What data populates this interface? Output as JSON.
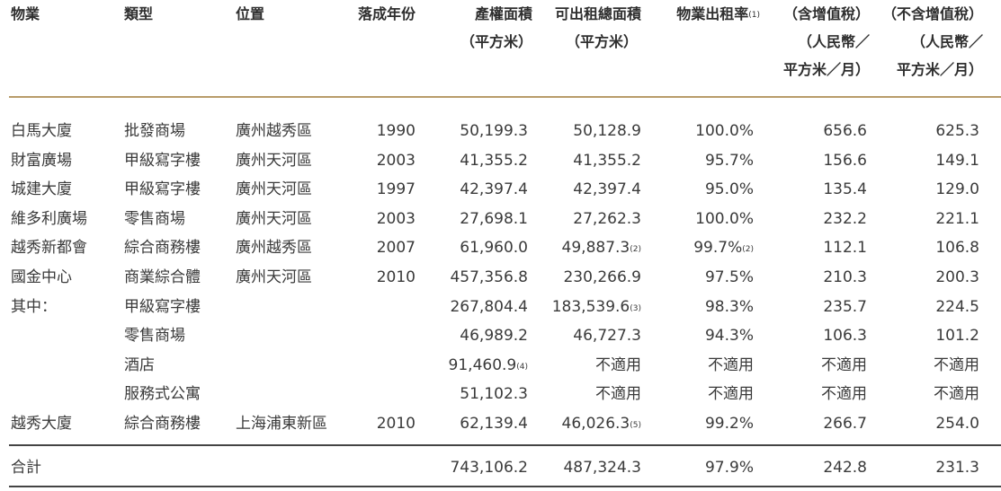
{
  "header": {
    "property": "物業",
    "type": "類型",
    "location": "位置",
    "year": "落成年份",
    "gfa_line1": "產權面積",
    "gfa_line2": "（平方米）",
    "lfa_line1": "可出租總面積",
    "lfa_line2": "（平方米）",
    "occ_line1": "物業出租率",
    "occ_note": "(1)",
    "inc_line1": "（含增值稅）",
    "inc_line2": "（人民幣／",
    "inc_line3": "平方米／月）",
    "exc_line1": "（不含增值稅）",
    "exc_line2": "（人民幣／",
    "exc_line3": "平方米／月）"
  },
  "rows": [
    {
      "name": "白馬大廈",
      "type": "批發商場",
      "location": "廣州越秀區",
      "year": "1990",
      "gfa": "50,199.3",
      "gfa_note": "",
      "lfa": "50,128.9",
      "lfa_note": "",
      "occ": "100.0%",
      "occ_note": "",
      "inc": "656.6",
      "exc": "625.3"
    },
    {
      "name": "財富廣場",
      "type": "甲級寫字樓",
      "location": "廣州天河區",
      "year": "2003",
      "gfa": "41,355.2",
      "gfa_note": "",
      "lfa": "41,355.2",
      "lfa_note": "",
      "occ": "95.7%",
      "occ_note": "",
      "inc": "156.6",
      "exc": "149.1"
    },
    {
      "name": "城建大廈",
      "type": "甲級寫字樓",
      "location": "廣州天河區",
      "year": "1997",
      "gfa": "42,397.4",
      "gfa_note": "",
      "lfa": "42,397.4",
      "lfa_note": "",
      "occ": "95.0%",
      "occ_note": "",
      "inc": "135.4",
      "exc": "129.0"
    },
    {
      "name": "維多利廣場",
      "type": "零售商場",
      "location": "廣州天河區",
      "year": "2003",
      "gfa": "27,698.1",
      "gfa_note": "",
      "lfa": "27,262.3",
      "lfa_note": "",
      "occ": "100.0%",
      "occ_note": "",
      "inc": "232.2",
      "exc": "221.1"
    },
    {
      "name": "越秀新都會",
      "type": "綜合商務樓",
      "location": "廣州越秀區",
      "year": "2007",
      "gfa": "61,960.0",
      "gfa_note": "",
      "lfa": "49,887.3",
      "lfa_note": "(2)",
      "occ": "99.7%",
      "occ_note": "(2)",
      "inc": "112.1",
      "exc": "106.8"
    },
    {
      "name": "國金中心",
      "type": "商業綜合體",
      "location": "廣州天河區",
      "year": "2010",
      "gfa": "457,356.8",
      "gfa_note": "",
      "lfa": "230,266.9",
      "lfa_note": "",
      "occ": "97.5%",
      "occ_note": "",
      "inc": "210.3",
      "exc": "200.3"
    },
    {
      "name": "其中：",
      "type": "甲級寫字樓",
      "location": "",
      "year": "",
      "gfa": "267,804.4",
      "gfa_note": "",
      "lfa": "183,539.6",
      "lfa_note": "(3)",
      "occ": "98.3%",
      "occ_note": "",
      "inc": "235.7",
      "exc": "224.5"
    },
    {
      "name": "",
      "type": "零售商場",
      "location": "",
      "year": "",
      "gfa": "46,989.2",
      "gfa_note": "",
      "lfa": "46,727.3",
      "lfa_note": "",
      "occ": "94.3%",
      "occ_note": "",
      "inc": "106.3",
      "exc": "101.2"
    },
    {
      "name": "",
      "type": "酒店",
      "location": "",
      "year": "",
      "gfa": "91,460.9",
      "gfa_note": "(4)",
      "lfa": "不適用",
      "lfa_note": "",
      "occ": "不適用",
      "occ_note": "",
      "inc": "不適用",
      "exc": "不適用"
    },
    {
      "name": "",
      "type": "服務式公寓",
      "location": "",
      "year": "",
      "gfa": "51,102.3",
      "gfa_note": "",
      "lfa": "不適用",
      "lfa_note": "",
      "occ": "不適用",
      "occ_note": "",
      "inc": "不適用",
      "exc": "不適用"
    },
    {
      "name": "越秀大廈",
      "type": "綜合商務樓",
      "location": "上海浦東新區",
      "year": "2010",
      "gfa": "62,139.4",
      "gfa_note": "",
      "lfa": "46,026.3",
      "lfa_note": "(5)",
      "occ": "99.2%",
      "occ_note": "",
      "inc": "266.7",
      "exc": "254.0"
    }
  ],
  "total": {
    "label": "合計",
    "gfa": "743,106.2",
    "lfa": "487,324.3",
    "occ": "97.9%",
    "inc": "242.8",
    "exc": "231.3"
  },
  "colors": {
    "gold_rule": "#b89c6a",
    "black_rule": "#444444",
    "text": "#3a3a3a"
  }
}
